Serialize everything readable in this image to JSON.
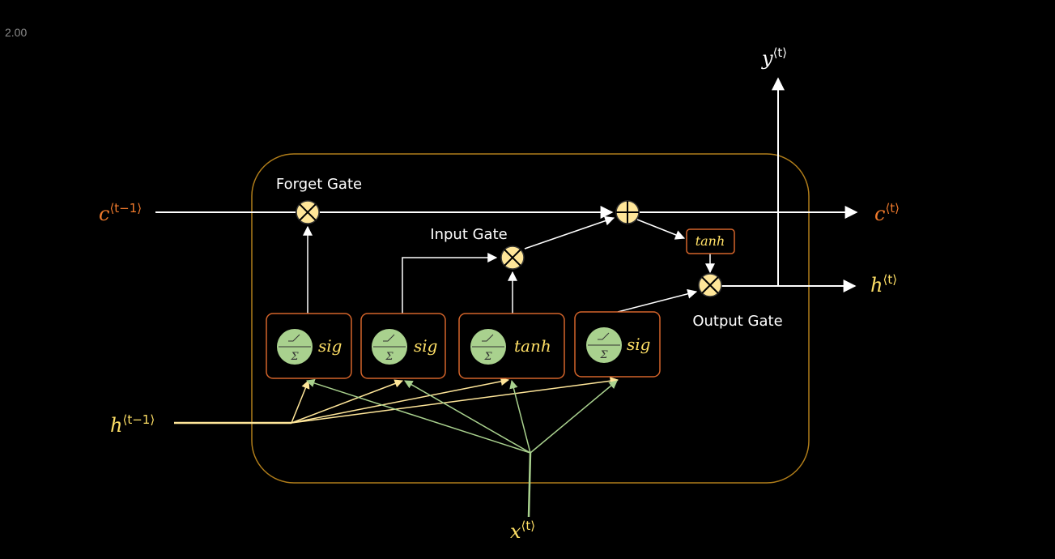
{
  "corner_value": "2.00",
  "gates": {
    "forget": "Forget Gate",
    "input": "Input Gate",
    "output": "Output Gate"
  },
  "variables": {
    "c_prev": {
      "base": "c",
      "sup": "⟨t−1⟩"
    },
    "c_next": {
      "base": "c",
      "sup": "⟨t⟩"
    },
    "h_prev": {
      "base": "h",
      "sup": "⟨t−1⟩"
    },
    "h_next": {
      "base": "h",
      "sup": "⟨t⟩"
    },
    "x_t": {
      "base": "x",
      "sup": "⟨t⟩"
    },
    "y_t": {
      "base": "y",
      "sup": "⟨t⟩"
    }
  },
  "activation_boxes": [
    {
      "fn": "sig"
    },
    {
      "fn": "sig"
    },
    {
      "fn": "tanh"
    },
    {
      "fn": "sig"
    }
  ],
  "cell_tanh": "tanh",
  "sigma_symbol": "Σ",
  "colors": {
    "background": "#000000",
    "cell_border": "#b07d1a",
    "box_border": "#d4642a",
    "neuron_fill": "#a9d18e",
    "op_fill": "#ffe699",
    "c_color": "#f07a2c",
    "h_color": "#ffe066",
    "x_color": "#ffe066",
    "h_line": "#ffe699",
    "x_line": "#a9d18e",
    "white": "#ffffff"
  }
}
